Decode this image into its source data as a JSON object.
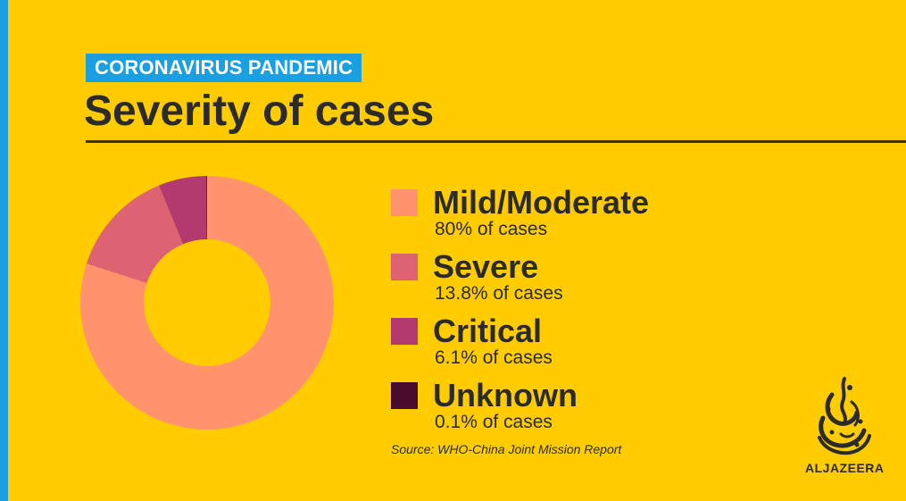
{
  "header": {
    "kicker": "CORONAVIRUS PANDEMIC",
    "title": "Severity of cases"
  },
  "chart_data": {
    "type": "pie",
    "title": "Severity of cases",
    "unit": "% of cases",
    "hole": "donut",
    "legend_position": "right",
    "categories": [
      "Mild/Moderate",
      "Severe",
      "Critical",
      "Unknown"
    ],
    "values": [
      80,
      13.8,
      6.1,
      0.1
    ],
    "value_labels": [
      "80% of cases",
      "13.8% of cases",
      "6.1% of cases",
      "0.1% of cases"
    ],
    "colors": [
      "#FF936E",
      "#DD6272",
      "#B23A6E",
      "#4A0C2C"
    ]
  },
  "source": "Source: WHO-China Joint Mission Report",
  "brand": {
    "name": "ALJAZEERA",
    "logo_icon": "aljazeera-calligraphy-logo"
  },
  "colors": {
    "background": "#FFCC00",
    "accent": "#1A9FE0",
    "text": "#2B2B2B"
  }
}
